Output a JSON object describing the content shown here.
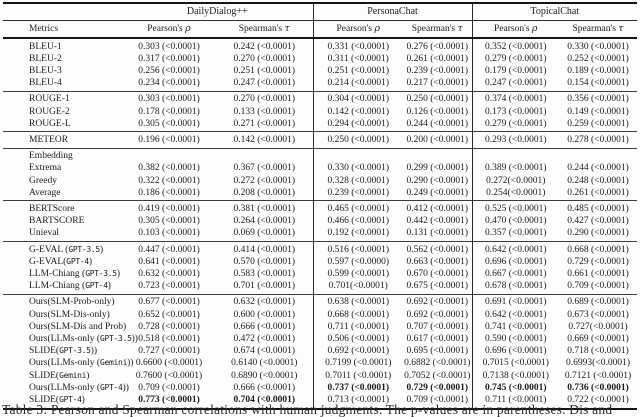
{
  "table": {
    "metrics_header": "Metrics",
    "groups": [
      {
        "label": "DailyDialog++"
      },
      {
        "label": "PersonaChat"
      },
      {
        "label": "TopicalChat"
      }
    ],
    "pearson_label": "Pearson's",
    "rho": "ρ",
    "spearman_label": "Spearman's",
    "tau": "τ",
    "sections": [
      {
        "rows": [
          {
            "pre": "BLEU-1",
            "cells": [
              "0.303 (<0.0001)",
              "0.242 (<0.0001)",
              "0.331 (<0.0001)",
              "0.276 (<0.0001)",
              "0.352 (<0.0001)",
              "0.330 (<0.0001)"
            ]
          },
          {
            "pre": "BLEU-2",
            "cells": [
              "0.317 (<0.0001)",
              "0.270 (<0.0001)",
              "0.311 (<0.0001)",
              "0.261 (<0.0001)",
              "0.279 (<0.0001)",
              "0.252 (<0.0001)"
            ]
          },
          {
            "pre": "BLEU-3",
            "cells": [
              "0.256 (<0.0001)",
              "0.251 (<0.0001)",
              "0.251 (<0.0001)",
              "0.239 (<0.0001)",
              "0.179 (<0.0001)",
              "0.189 (<0.0001)"
            ]
          },
          {
            "pre": "BLEU-4",
            "cells": [
              "0.234 (<0.0001)",
              "0.247 (<0.0001)",
              "0.214 (<0.0001)",
              "0.217 (<0.0001)",
              "0.247 (<0.0001)",
              "0.154 (<0.0001)"
            ]
          }
        ]
      },
      {
        "rows": [
          {
            "pre": "ROUGE-1",
            "cells": [
              "0.303 (<0.0001)",
              "0.270 (<0.0001)",
              "0.304 (<0.0001)",
              "0.250 (<0.0001)",
              "0.374 (<0.0001)",
              "0.356 (<0.0001)"
            ]
          },
          {
            "pre": "ROUGE-2",
            "cells": [
              "0.178 (<0.0001)",
              "0.133 (<0.0001)",
              "0.142 (<0.0001)",
              "0.126 (<0.0001)",
              "0.173 (<0.0001)",
              "0.149 (<0.0001)"
            ]
          },
          {
            "pre": "ROUGE-L",
            "cells": [
              "0.305 (<0.0001)",
              "0.271 (<0.0001)",
              "0.294 (<0.0001)",
              "0.244 (<0.0001)",
              "0.279 (<0.0001)",
              "0.259 (<0.0001)"
            ]
          }
        ]
      },
      {
        "rows": [
          {
            "pre": "METEOR",
            "cells": [
              "0.196 (<0.0001)",
              "0.142 (<0.0001)",
              "0.250 (<0.0001)",
              "0.200 (<0.0001)",
              "0.293 (<0.0001)",
              "0.278 (<0.0001)"
            ]
          }
        ]
      },
      {
        "rows": [
          {
            "pre": "Embedding",
            "cells": []
          },
          {
            "pre": "Extrema",
            "cells": [
              "0.382 (<0.0001)",
              "0.367 (<0.0001)",
              "0.330 (<0.0001)",
              "0.299 (<0.0001)",
              "0.389 (<0.0001)",
              "0.244 (<0.0001)"
            ]
          },
          {
            "pre": "Greedy",
            "cells": [
              "0.322 (<0.0001)",
              "0.272 (<0.0001)",
              "0.328 (<0.0001)",
              "0.290 (<0.0001)",
              "0.272(<0.0001)",
              "0.248 (<0.0001)"
            ]
          },
          {
            "pre": "Average",
            "cells": [
              "0.186 (<0.0001)",
              "0.208 (<0.0001)",
              "0.239 (<0.0001)",
              "0.249 (<0.0001)",
              "0.254(<0.0001)",
              "0.261 (<0.0001)"
            ]
          }
        ]
      },
      {
        "rows": [
          {
            "pre": "BERTScore",
            "cells": [
              "0.419 (<0.0001)",
              "0.381 (<0.0001)",
              "0.465 (<0.0001)",
              "0.412 (<0.0001)",
              "0.525 (<0.0001)",
              "0.485 (<0.0001)"
            ]
          },
          {
            "pre": "BARTSCORE",
            "cells": [
              "0.305 (<0.0001)",
              "0.264 (<0.0001)",
              "0.466 (<0.0001)",
              "0.442 (<0.0001)",
              "0.470 (<0.0001)",
              "0.427 (<0.0001)"
            ]
          },
          {
            "pre": "Unieval",
            "cells": [
              "0.103 (<0.0001)",
              "0.069 (<0.0001)",
              "0.192 (<0.0001)",
              "0.131 (<0.0001)",
              "0.357 (<0.0001)",
              "0.290 (<0.0001)"
            ]
          }
        ]
      },
      {
        "rows": [
          {
            "pre": "G-EVAL (",
            "mono": "GPT-3.5",
            "post": ")",
            "cells": [
              "0.447 (<0.0001)",
              "0.414 (<0.0001)",
              "0.516 (<0.0001)",
              "0.562 (<0.0001)",
              "0.642 (<0.0001)",
              "0.668 (<0.0001)"
            ]
          },
          {
            "pre": "G-EVAL(",
            "mono": "GPT-4",
            "post": ")",
            "cells": [
              "0.641 (<0.0001)",
              "0.570 (<0.0001)",
              "0.597 (<0.0000)",
              "0.663 (<0.0001)",
              "0.696 (<0.0001)",
              "0.729 (<0.0001)"
            ]
          },
          {
            "pre": "LLM-Chiang (",
            "mono": "GPT-3.5",
            "post": ")",
            "cells": [
              "0.632 (<0.0001)",
              "0.583 (<0.0001)",
              "0.599 (<0.0001)",
              "0.670 (<0.0001)",
              "0.667 (<0.0001)",
              "0.661 (<0.0001)"
            ]
          },
          {
            "pre": "LLM-Chiang (",
            "mono": "GPT-4",
            "post": ")",
            "cells": [
              "0.723 (<0.0001)",
              "0.701 (<0.0001)",
              "0.701(<0.0001)",
              "0.675 (<0.0001)",
              "0.678 (<0.0001)",
              "0.709 (<0.0001)"
            ]
          }
        ]
      },
      {
        "rows": [
          {
            "pre": "Ours(SLM-Prob-only)",
            "cells": [
              "0.677 (<0.0001)",
              "0.632 (<0.0001)",
              "0.638 (<0.0001)",
              "0.692 (<0.0001)",
              "0.691 (<0.0001)",
              "0.689 (<0.0001)"
            ]
          },
          {
            "pre": "Ours(SLM-Dis-only)",
            "cells": [
              "0.652 (<0.0001)",
              "0.600 (<0.0001)",
              "0.668 (<0.0001)",
              "0.692 (<0.0001)",
              "0.642 (<0.0001)",
              "0.673 (<0.0001)"
            ]
          },
          {
            "pre": "Ours(SLM-Dis and Prob)",
            "cells": [
              "0.728 (<0.0001)",
              "0.666 (<0.0001)",
              "0.711 (<0.0001)",
              "0.707 (<0.0001)",
              "0.741 (<0.0001)",
              "0.727(<0.0001)"
            ]
          },
          {
            "pre": "Ours(LLMs-only (",
            "mono": "GPT-3.5",
            "post": "))",
            "cells": [
              "0.518 (<0.0001)",
              "0.472 (<0.0001)",
              "0.506 (<0.0001)",
              "0.617 (<0.0001)",
              "0.590 (<0.0001)",
              "0.669 (<0.0001)"
            ]
          },
          {
            "pre": "SLIDE(",
            "mono": "GPT-3.5",
            "post": "))",
            "cells": [
              "0.727 (<0.0001)",
              "0.674 (<0.0001)",
              "0.692 (<0.0001)",
              "0.695 (<0.0001)",
              "0.696 (<0.0001)",
              "0.718 (<0.0001)"
            ]
          },
          {
            "pre": "Ours(LLMs-only (",
            "mono": "Gemini",
            "post": "))",
            "cells": [
              "0.6600 (<0.0001)",
              "0.6140 (<0.0001)",
              "0.7199 (<0.0001)",
              "0.6882 (<0.0001)",
              "0.7015 (<0.0001)",
              "0.6993(<0.0001)"
            ]
          },
          {
            "pre": "SLIDE(",
            "mono": "Gemini",
            "post": ")",
            "cells": [
              "0.7600 (<0.0001)",
              "0.6890 (<0.0001)",
              "0.7011 (<0.0001)",
              "0.7052 (<0.0001)",
              "0.7138 (<0.0001)",
              "0.7121 (<0.0001)"
            ]
          },
          {
            "pre": "Ours(LLMs-only (",
            "mono": "GPT-4",
            "post": "))",
            "bold": [
              2,
              3,
              4,
              5
            ],
            "cells": [
              "0.709 (<0.0001)",
              "0.666 (<0.0001)",
              "0.737 (<0.0001)",
              "0.729 (<0.0001)",
              "0.745 (<0.0001)",
              "0.736 (<0.0001)"
            ]
          },
          {
            "pre": "SLIDE(",
            "mono": "GPT-4",
            "post": ")",
            "bold": [
              0,
              1
            ],
            "cells": [
              "0.773 (<0.0001)",
              "0.704 (<0.0001)",
              "0.713 (<0.0001)",
              "0.709 (<0.0001)",
              "0.711 (<0.0001)",
              "0.722 (<0.0001)"
            ]
          }
        ]
      }
    ]
  },
  "caption": "Table 3: Pearson and Spearman correlations with human judgments. The p-values are in parentheses. Dis and"
}
